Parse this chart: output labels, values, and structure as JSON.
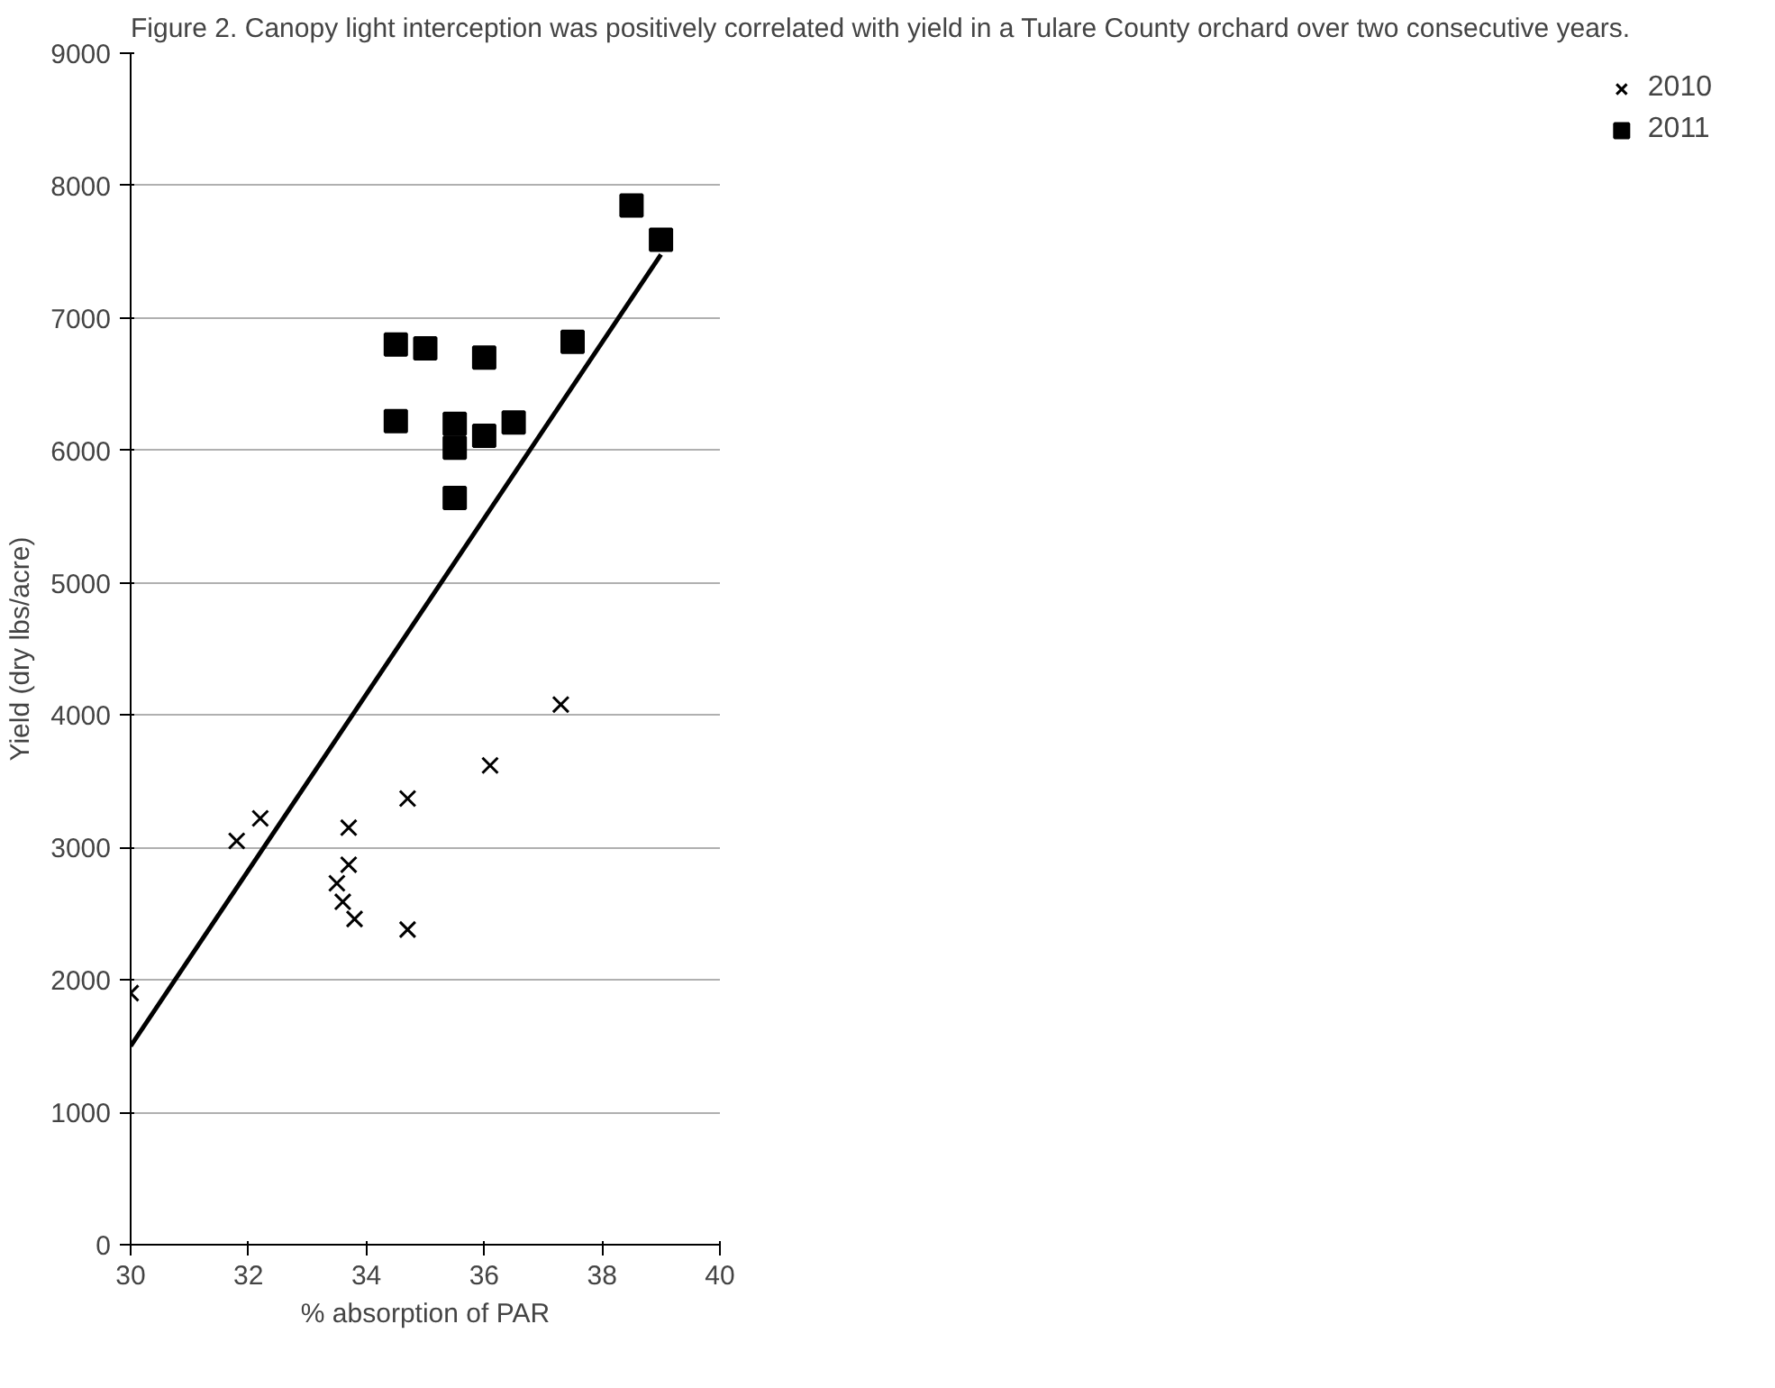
{
  "chart_data": {
    "type": "scatter",
    "title": "Figure 2. Canopy light interception was positively correlated with yield in a Tulare County orchard over two consecutive years.",
    "xlabel": "% absorption of PAR",
    "ylabel": "Yield (dry lbs/acre)",
    "xlim": [
      30,
      40
    ],
    "xticks": [
      30,
      32,
      34,
      36,
      38,
      40
    ],
    "ylim": [
      0,
      9000
    ],
    "yticks": [
      0,
      1000,
      2000,
      3000,
      4000,
      5000,
      6000,
      7000,
      8000,
      9000
    ],
    "grid": "y",
    "legend": "right",
    "series": [
      {
        "name": "2010",
        "color": "#000000",
        "marker": "cross",
        "x": [
          30,
          31.8,
          32.2,
          33.5,
          33.6,
          33.7,
          33.7,
          33.8,
          34.7,
          34.7,
          36.1,
          37.3
        ],
        "values": [
          1900,
          3050,
          3220,
          2730,
          2590,
          3150,
          2870,
          2460,
          3370,
          2380,
          3620,
          4080
        ]
      },
      {
        "name": "2011",
        "color": "#000000",
        "marker": "square",
        "x": [
          34.5,
          34.5,
          35,
          35.5,
          35.5,
          35.5,
          36,
          36,
          36.5,
          37.5,
          38.5,
          39
        ],
        "values": [
          6800,
          6220,
          6770,
          6200,
          6020,
          5640,
          6700,
          6110,
          6210,
          6820,
          7850,
          7590
        ]
      },
      {
        "type": "line",
        "color": "#000000",
        "x": [
          30,
          39
        ],
        "values": [
          1500,
          7480
        ]
      }
    ]
  }
}
